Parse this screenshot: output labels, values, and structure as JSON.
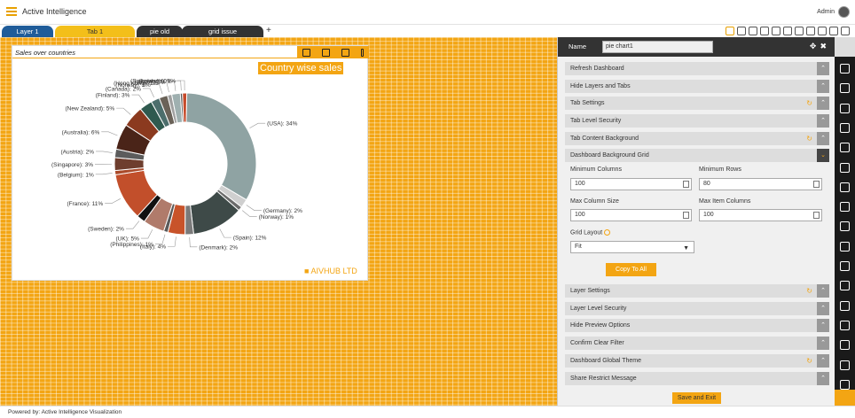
{
  "app": {
    "title": "Active Intelligence",
    "user": "Admin"
  },
  "tabs": [
    {
      "label": "Layer 1"
    },
    {
      "label": "Tab 1"
    },
    {
      "label": "pie old"
    },
    {
      "label": "grid issue"
    }
  ],
  "tab_add": "+",
  "widget": {
    "title": "Sales over countries",
    "chart_title": "Country wise sales",
    "watermark": "AIVHUB LTD"
  },
  "chart_data": {
    "type": "pie",
    "title": "Country wise sales",
    "donut": true,
    "slices": [
      {
        "label": "(USA): 34%",
        "value": 34,
        "color": "#8fa3a3"
      },
      {
        "label": "(Germany): 2%",
        "value": 2,
        "color": "#cfcfcf"
      },
      {
        "label": "(Norway): 1%",
        "value": 1,
        "color": "#6b6b6b"
      },
      {
        "label": "(Spain): 12%",
        "value": 12,
        "color": "#3e4a48"
      },
      {
        "label": "(Denmark): 2%",
        "value": 2,
        "color": "#7a7a7a"
      },
      {
        "label": "(Italy): 4%",
        "value": 4,
        "color": "#c8532a"
      },
      {
        "label": "(Philippines): 1%",
        "value": 1,
        "color": "#5a5a5a"
      },
      {
        "label": "(UK): 5%",
        "value": 5,
        "color": "#b07b6b"
      },
      {
        "label": "(Sweden): 2%",
        "value": 2,
        "color": "#111111"
      },
      {
        "label": "(France): 11%",
        "value": 11,
        "color": "#c24f2b"
      },
      {
        "label": "(Belgium): 1%",
        "value": 1,
        "color": "#aa4a2a"
      },
      {
        "label": "(Singapore): 3%",
        "value": 3,
        "color": "#6e3e2e"
      },
      {
        "label": "(Austria): 2%",
        "value": 2,
        "color": "#5c5c5c"
      },
      {
        "label": "(Australia): 6%",
        "value": 6,
        "color": "#4a2418"
      },
      {
        "label": "(New Zealand): 5%",
        "value": 5,
        "color": "#8b3a1f"
      },
      {
        "label": "(Finland): 3%",
        "value": 3,
        "color": "#2f5a4f"
      },
      {
        "label": "(Canada): 2%",
        "value": 2,
        "color": "#4c6e6c"
      },
      {
        "label": "(Norway): 2%",
        "value": 2,
        "color": "#6a6258"
      },
      {
        "label": "(Hong Kong): 1%",
        "value": 1,
        "color": "#a0a0a0"
      },
      {
        "label": "(Japan): 2%",
        "value": 2,
        "color": "#9fb0b0"
      },
      {
        "label": "(Ireland): 0%",
        "value": 0.5,
        "color": "#555555"
      },
      {
        "label": "(Switzerland): 1%",
        "value": 1,
        "color": "#c64a2a"
      }
    ]
  },
  "panel": {
    "name_label": "Name",
    "name_value": "pie chart1",
    "sections_top": [
      {
        "label": "Refresh Dashboard",
        "refresh": false
      },
      {
        "label": "Hide Layers and Tabs",
        "refresh": false
      },
      {
        "label": "Tab Settings",
        "refresh": true
      },
      {
        "label": "Tab Level Security",
        "refresh": false
      },
      {
        "label": "Tab Content Background",
        "refresh": true
      }
    ],
    "grid_section": {
      "label": "Dashboard Background Grid",
      "min_columns_label": "Minimum Columns",
      "min_columns": "100",
      "min_rows_label": "Minimum Rows",
      "min_rows": "80",
      "max_col_size_label": "Max Column Size",
      "max_col_size": "100",
      "max_item_cols_label": "Max Item Columns",
      "max_item_cols": "100",
      "grid_layout_label": "Grid Layout",
      "grid_layout": "Fit",
      "copy_label": "Copy To All"
    },
    "sections_bottom": [
      {
        "label": "Layer Settings",
        "refresh": true
      },
      {
        "label": "Layer Level Security",
        "refresh": false
      },
      {
        "label": "Hide Preview Options",
        "refresh": false
      },
      {
        "label": "Confirm Clear Filter",
        "refresh": false
      },
      {
        "label": "Dashboard Global Theme",
        "refresh": true
      },
      {
        "label": "Share Restrict Message",
        "refresh": false
      }
    ],
    "save_label": "Save and Exit"
  },
  "footer": "Powered by: Active Intelligence Visualization"
}
